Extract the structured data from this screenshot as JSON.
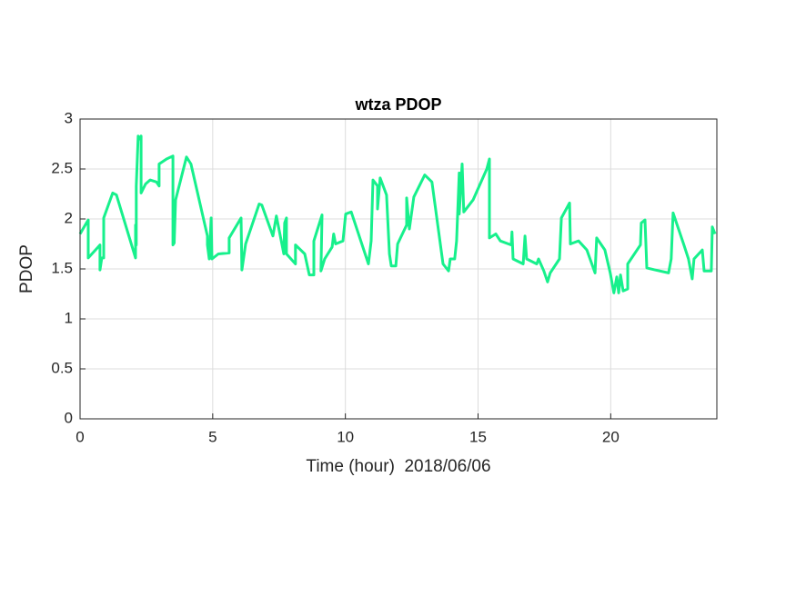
{
  "chart_data": {
    "type": "line",
    "title": "wtza PDOP",
    "x_label": "Time (hour)  2018/06/06",
    "y_label": "PDOP",
    "color": "#17f08c",
    "grid": true,
    "xlim": [
      0,
      24
    ],
    "ylim": [
      0,
      3
    ],
    "xticks": [
      0,
      5,
      10,
      15,
      20
    ],
    "yticks": [
      0,
      0.5,
      1,
      1.5,
      2,
      2.5,
      3
    ],
    "x": [
      0,
      0.24,
      0.31,
      0.31,
      0.65,
      0.75,
      0.75,
      0.82,
      0.89,
      0.89,
      1.23,
      1.37,
      2.09,
      2.09,
      2.12,
      2.12,
      2.19,
      2.25,
      2.3,
      2.3,
      2.47,
      2.64,
      2.88,
      2.98,
      2.98,
      3.26,
      3.5,
      3.5,
      3.55,
      3.6,
      4.01,
      4.18,
      4.8,
      4.8,
      4.87,
      4.94,
      4.97,
      5.21,
      5.62,
      5.62,
      6.07,
      6.1,
      6.24,
      6.75,
      6.85,
      7.27,
      7.4,
      7.68,
      7.71,
      7.78,
      7.78,
      8.12,
      8.12,
      8.47,
      8.64,
      8.81,
      8.81,
      9.12,
      9.08,
      9.22,
      9.5,
      9.56,
      9.63,
      9.91,
      10.01,
      10.22,
      10.87,
      10.97,
      11.04,
      11.21,
      11.21,
      11.31,
      11.55,
      11.66,
      11.73,
      11.9,
      11.97,
      12.31,
      12.31,
      12.41,
      12.58,
      12.99,
      13.26,
      13.68,
      13.89,
      13.95,
      14.12,
      14.19,
      14.29,
      14.29,
      14.4,
      14.46,
      14.81,
      15.33,
      15.43,
      15.43,
      15.67,
      15.84,
      16.25,
      16.28,
      16.32,
      16.7,
      16.77,
      16.83,
      17.21,
      17.28,
      17.48,
      17.62,
      17.72,
      18.07,
      18.14,
      18.45,
      18.48,
      18.79,
      19.1,
      19.41,
      19.47,
      19.78,
      19.98,
      20.12,
      20.23,
      20.3,
      20.37,
      20.47,
      20.64,
      20.64,
      21.12,
      21.15,
      21.29,
      21.36,
      21.67,
      22.18,
      22.28,
      22.35,
      22.76,
      22.93,
      23.07,
      23.14,
      23.45,
      23.52,
      23.79,
      23.83,
      23.93
    ],
    "values": [
      1.85,
      1.96,
      1.99,
      1.61,
      1.71,
      1.74,
      1.49,
      1.61,
      1.61,
      2.01,
      2.26,
      2.24,
      1.61,
      1.94,
      1.74,
      2.33,
      2.83,
      2.8,
      2.83,
      2.26,
      2.35,
      2.39,
      2.37,
      2.33,
      2.55,
      2.6,
      2.63,
      1.74,
      1.76,
      2.19,
      2.62,
      2.55,
      1.83,
      1.74,
      1.6,
      2.01,
      1.6,
      1.65,
      1.66,
      1.81,
      2.01,
      1.49,
      1.75,
      2.15,
      2.14,
      1.83,
      2.03,
      1.65,
      1.96,
      2.01,
      1.65,
      1.55,
      1.74,
      1.65,
      1.44,
      1.44,
      1.78,
      2.04,
      1.48,
      1.6,
      1.72,
      1.85,
      1.75,
      1.78,
      2.05,
      2.07,
      1.55,
      1.78,
      2.39,
      2.33,
      2.1,
      2.41,
      2.24,
      1.65,
      1.53,
      1.53,
      1.75,
      1.94,
      2.21,
      1.9,
      2.22,
      2.44,
      2.37,
      1.55,
      1.48,
      1.6,
      1.6,
      1.78,
      2.46,
      2.05,
      2.55,
      2.07,
      2.19,
      2.5,
      2.6,
      1.81,
      1.85,
      1.78,
      1.74,
      1.87,
      1.6,
      1.55,
      1.83,
      1.6,
      1.55,
      1.6,
      1.48,
      1.37,
      1.46,
      1.6,
      2.01,
      2.16,
      1.75,
      1.78,
      1.69,
      1.46,
      1.81,
      1.69,
      1.46,
      1.26,
      1.42,
      1.26,
      1.44,
      1.28,
      1.3,
      1.55,
      1.74,
      1.96,
      1.99,
      1.51,
      1.49,
      1.46,
      1.6,
      2.06,
      1.74,
      1.6,
      1.4,
      1.6,
      1.69,
      1.48,
      1.48,
      1.92,
      1.85
    ]
  }
}
